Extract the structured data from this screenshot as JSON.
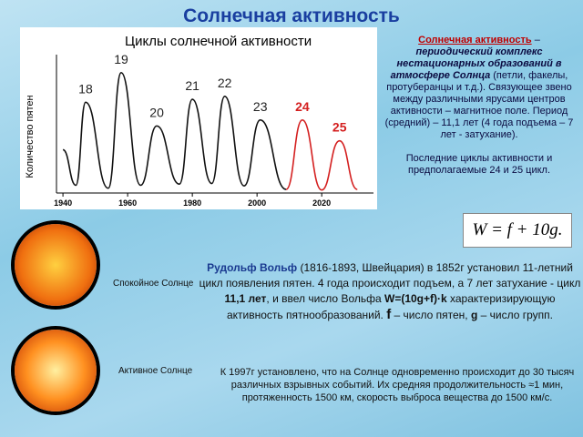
{
  "chart_data": {
    "type": "line",
    "title": "Циклы солнечной активности",
    "y_label": "Количество пятен",
    "x": [
      1940,
      1944,
      1947,
      1954,
      1958,
      1964,
      1969,
      1976,
      1980,
      1986,
      1990,
      1996,
      2001,
      2009
    ],
    "series": [
      {
        "color": "#111111",
        "values": [
          70,
          10,
          150,
          5,
          200,
          10,
          110,
          12,
          155,
          13,
          160,
          9,
          120,
          3
        ]
      },
      {
        "color": "#d42020",
        "x": [
          2009,
          2014,
          2020,
          2025.5,
          2031
        ],
        "values": [
          3,
          120,
          2,
          85,
          3
        ]
      }
    ],
    "cycle_labels": [
      "18",
      "19",
      "20",
      "21",
      "22",
      "23",
      "24",
      "25"
    ],
    "xlim": [
      1938,
      2036
    ],
    "ylim": [
      0,
      215
    ],
    "xticks": [
      1940,
      1960,
      1980,
      2000,
      2020
    ]
  },
  "slide": {
    "title": "Солнечная активность",
    "definition": {
      "term": "Солнечная активность",
      "dash": " – ",
      "body": "периодический комплекс нестационарных образований в атмосфере Солнца",
      "tail": " (петли, факелы, протуберанцы и т.д.). Связующее звено между различными ярусами центров активности – магнитное поле. Период (средний) – 11,1 лет (4 года подъема – 7 лет - затухание)."
    },
    "last_cycles": "Последние циклы активности и предполагаемые 24 и 25 цикл.",
    "formula": "W = f + 10g.",
    "quiet_sun": "Спокойное Солнце",
    "active_sun": "Активное Солнце",
    "wolf": {
      "name": "Рудольф Вольф",
      "p1": " (1816-1893, Швейцария) в 1852г установил 11-летний цикл появления пятен. 4 года происходит подъем, а 7 лет затухание - цикл ",
      "period": "11,1 лет",
      "p2": ", и ввел число Вольфа ",
      "formula": "W=(10g+f)·k",
      "p3": " характеризирующую активность пятнообразований. ",
      "f": "f",
      "p4": " – число пятен, ",
      "g": "g",
      "p5": " – число групп."
    },
    "flares": "К 1997г установлено, что на Солнце одновременно происходит до 30 тысяч различных взрывных событий. Их средняя продолжительность ≈1 мин, протяженность 1500 км, скорость выброса вещества до 1500 км/с."
  }
}
